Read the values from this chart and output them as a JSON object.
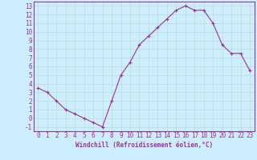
{
  "x": [
    0,
    1,
    2,
    3,
    4,
    5,
    6,
    7,
    8,
    9,
    10,
    11,
    12,
    13,
    14,
    15,
    16,
    17,
    18,
    19,
    20,
    21,
    22,
    23
  ],
  "y": [
    3.5,
    3.0,
    2.0,
    1.0,
    0.5,
    0.0,
    -0.5,
    -1.0,
    2.0,
    5.0,
    6.5,
    8.5,
    9.5,
    10.5,
    11.5,
    12.5,
    13.0,
    12.5,
    12.5,
    11.0,
    8.5,
    7.5,
    7.5,
    5.5
  ],
  "line_color": "#993399",
  "marker": "+",
  "bg_color": "#cceeff",
  "grid_color": "#bbddcc",
  "xlabel": "Windchill (Refroidissement éolien,°C)",
  "xlabel_color": "#993399",
  "tick_color": "#993399",
  "ylim": [
    -1.5,
    13.5
  ],
  "xlim": [
    -0.5,
    23.5
  ],
  "yticks": [
    -1,
    0,
    1,
    2,
    3,
    4,
    5,
    6,
    7,
    8,
    9,
    10,
    11,
    12,
    13
  ],
  "xticks": [
    0,
    1,
    2,
    3,
    4,
    5,
    6,
    7,
    8,
    9,
    10,
    11,
    12,
    13,
    14,
    15,
    16,
    17,
    18,
    19,
    20,
    21,
    22,
    23
  ],
  "xtick_labels": [
    "0",
    "1",
    "2",
    "3",
    "4",
    "5",
    "6",
    "7",
    "8",
    "9",
    "10",
    "11",
    "12",
    "13",
    "14",
    "15",
    "16",
    "17",
    "18",
    "19",
    "20",
    "21",
    "22",
    "23"
  ],
  "ytick_labels": [
    "-1",
    "0",
    "1",
    "2",
    "3",
    "4",
    "5",
    "6",
    "7",
    "8",
    "9",
    "10",
    "11",
    "12",
    "13"
  ],
  "spine_color": "#993399",
  "font_size": 5.5
}
